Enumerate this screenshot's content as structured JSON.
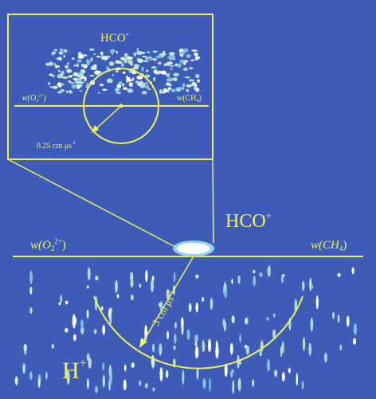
{
  "inset": {
    "product_label": {
      "base": "HCO",
      "sup": "+"
    },
    "left_label": {
      "base": "w(O",
      "sub": "2",
      "sup": "2+",
      "end": ")"
    },
    "right_label": {
      "base": "w(CH",
      "sub": "4",
      "end": ")"
    },
    "scale_label": {
      "base": "0.25 cm μs",
      "sup": "-1"
    }
  },
  "main": {
    "product_label": {
      "base": "HCO",
      "sup": "+"
    },
    "left_label": {
      "base": "w(O",
      "sub": "2",
      "sup": "2+",
      "end": ")"
    },
    "right_label": {
      "base": "w(CH",
      "sub": "4",
      "end": ")"
    },
    "scale_label": {
      "base": "3 cm μs",
      "sup": "-1"
    },
    "ion_label": {
      "base": "H",
      "sup": "+"
    }
  }
}
